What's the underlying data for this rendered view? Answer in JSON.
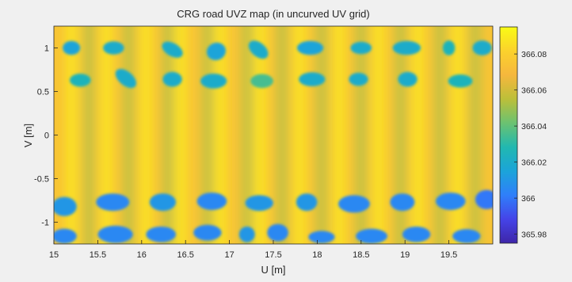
{
  "chart_data": {
    "type": "heatmap",
    "title": "CRG road UVZ map (in uncurved UV grid)",
    "xlabel": "U [m]",
    "ylabel": "V [m]",
    "xlim": [
      15,
      20
    ],
    "ylim": [
      -1.25,
      1.25
    ],
    "xticks": [
      "15",
      "15.5",
      "16",
      "16.5",
      "17",
      "17.5",
      "18",
      "18.5",
      "19",
      "19.5"
    ],
    "yticks": [
      "1",
      "0.5",
      "0",
      "-0.5",
      "-1"
    ],
    "grid": false,
    "colorbar": {
      "range": [
        365.975,
        366.095
      ],
      "ticks": [
        "366.08",
        "366.06",
        "366.04",
        "366.02",
        "366",
        "365.98"
      ],
      "colormap": [
        "#3e26a8",
        "#4544e8",
        "#2f7ffa",
        "#1ba4d9",
        "#21b8b0",
        "#6bc271",
        "#bcbf39",
        "#f6b73d",
        "#fbd22c",
        "#f9fb15"
      ]
    },
    "background_level": 366.075,
    "stripe_u": [
      15.2,
      15.6,
      16.05,
      16.45,
      16.9,
      17.35,
      17.8,
      18.25,
      18.7,
      19.15,
      19.6
    ],
    "stripe_level": 366.09,
    "trough_u": [
      15.4,
      15.85,
      16.3,
      16.75,
      17.2,
      17.6,
      18.05,
      18.5,
      18.95,
      19.4,
      19.8
    ],
    "trough_level": 366.05,
    "blobs": [
      {
        "u": 15.2,
        "v": 1.0,
        "ru": 0.1,
        "rv": 0.08,
        "tilt": 0,
        "z": 366.015
      },
      {
        "u": 15.68,
        "v": 1.0,
        "ru": 0.12,
        "rv": 0.075,
        "tilt": 0,
        "z": 366.02
      },
      {
        "u": 16.35,
        "v": 0.98,
        "ru": 0.13,
        "rv": 0.075,
        "tilt": 30,
        "z": 366.02
      },
      {
        "u": 16.85,
        "v": 0.96,
        "ru": 0.11,
        "rv": 0.1,
        "tilt": -20,
        "z": 366.015
      },
      {
        "u": 17.33,
        "v": 0.98,
        "ru": 0.13,
        "rv": 0.08,
        "tilt": 40,
        "z": 366.02
      },
      {
        "u": 17.92,
        "v": 1.0,
        "ru": 0.15,
        "rv": 0.08,
        "tilt": 0,
        "z": 366.015
      },
      {
        "u": 18.5,
        "v": 1.0,
        "ru": 0.12,
        "rv": 0.07,
        "tilt": 0,
        "z": 366.02
      },
      {
        "u": 19.02,
        "v": 1.0,
        "ru": 0.16,
        "rv": 0.08,
        "tilt": 0,
        "z": 366.02
      },
      {
        "u": 19.5,
        "v": 1.0,
        "ru": 0.07,
        "rv": 0.085,
        "tilt": 0,
        "z": 366.025
      },
      {
        "u": 19.88,
        "v": 1.0,
        "ru": 0.11,
        "rv": 0.085,
        "tilt": 0,
        "z": 366.02
      },
      {
        "u": 15.3,
        "v": 0.63,
        "ru": 0.12,
        "rv": 0.075,
        "tilt": 0,
        "z": 366.025
      },
      {
        "u": 15.82,
        "v": 0.65,
        "ru": 0.14,
        "rv": 0.08,
        "tilt": 40,
        "z": 366.02
      },
      {
        "u": 16.35,
        "v": 0.64,
        "ru": 0.11,
        "rv": 0.085,
        "tilt": 0,
        "z": 366.02
      },
      {
        "u": 16.82,
        "v": 0.62,
        "ru": 0.15,
        "rv": 0.085,
        "tilt": 0,
        "z": 366.02
      },
      {
        "u": 17.37,
        "v": 0.62,
        "ru": 0.13,
        "rv": 0.08,
        "tilt": 0,
        "z": 366.035
      },
      {
        "u": 17.94,
        "v": 0.64,
        "ru": 0.15,
        "rv": 0.08,
        "tilt": 0,
        "z": 366.02
      },
      {
        "u": 18.47,
        "v": 0.64,
        "ru": 0.11,
        "rv": 0.075,
        "tilt": 0,
        "z": 366.02
      },
      {
        "u": 19.03,
        "v": 0.64,
        "ru": 0.11,
        "rv": 0.085,
        "tilt": 0,
        "z": 366.02
      },
      {
        "u": 19.63,
        "v": 0.62,
        "ru": 0.14,
        "rv": 0.075,
        "tilt": 0,
        "z": 366.025
      },
      {
        "u": 15.12,
        "v": -0.82,
        "ru": 0.14,
        "rv": 0.11,
        "tilt": 0,
        "z": 366.01
      },
      {
        "u": 15.67,
        "v": -0.77,
        "ru": 0.19,
        "rv": 0.1,
        "tilt": 0,
        "z": 366.005
      },
      {
        "u": 16.24,
        "v": -0.77,
        "ru": 0.15,
        "rv": 0.1,
        "tilt": 0,
        "z": 366.01
      },
      {
        "u": 16.8,
        "v": -0.76,
        "ru": 0.17,
        "rv": 0.1,
        "tilt": 0,
        "z": 366.005
      },
      {
        "u": 17.34,
        "v": -0.78,
        "ru": 0.16,
        "rv": 0.09,
        "tilt": 0,
        "z": 366.01
      },
      {
        "u": 17.88,
        "v": -0.77,
        "ru": 0.12,
        "rv": 0.1,
        "tilt": 0,
        "z": 366.01
      },
      {
        "u": 18.42,
        "v": -0.79,
        "ru": 0.18,
        "rv": 0.1,
        "tilt": 0,
        "z": 366.005
      },
      {
        "u": 18.97,
        "v": -0.77,
        "ru": 0.14,
        "rv": 0.1,
        "tilt": 0,
        "z": 366.005
      },
      {
        "u": 19.52,
        "v": -0.76,
        "ru": 0.17,
        "rv": 0.1,
        "tilt": 0,
        "z": 366.005
      },
      {
        "u": 19.93,
        "v": -0.74,
        "ru": 0.13,
        "rv": 0.11,
        "tilt": 0,
        "z": 366.0
      },
      {
        "u": 15.12,
        "v": -1.16,
        "ru": 0.14,
        "rv": 0.085,
        "tilt": 0,
        "z": 366.005
      },
      {
        "u": 15.7,
        "v": -1.14,
        "ru": 0.2,
        "rv": 0.1,
        "tilt": 0,
        "z": 366.005
      },
      {
        "u": 16.22,
        "v": -1.14,
        "ru": 0.17,
        "rv": 0.09,
        "tilt": 0,
        "z": 366.005
      },
      {
        "u": 16.75,
        "v": -1.12,
        "ru": 0.16,
        "rv": 0.09,
        "tilt": 0,
        "z": 366.005
      },
      {
        "u": 17.2,
        "v": -1.14,
        "ru": 0.09,
        "rv": 0.09,
        "tilt": 0,
        "z": 366.01
      },
      {
        "u": 17.55,
        "v": -1.12,
        "ru": 0.12,
        "rv": 0.1,
        "tilt": 0,
        "z": 366.005
      },
      {
        "u": 18.05,
        "v": -1.17,
        "ru": 0.15,
        "rv": 0.07,
        "tilt": 0,
        "z": 366.005
      },
      {
        "u": 18.62,
        "v": -1.16,
        "ru": 0.18,
        "rv": 0.085,
        "tilt": 0,
        "z": 366.005
      },
      {
        "u": 19.13,
        "v": -1.14,
        "ru": 0.16,
        "rv": 0.09,
        "tilt": 0,
        "z": 366.005
      },
      {
        "u": 19.7,
        "v": -1.16,
        "ru": 0.16,
        "rv": 0.08,
        "tilt": 0,
        "z": 366.005
      }
    ]
  }
}
